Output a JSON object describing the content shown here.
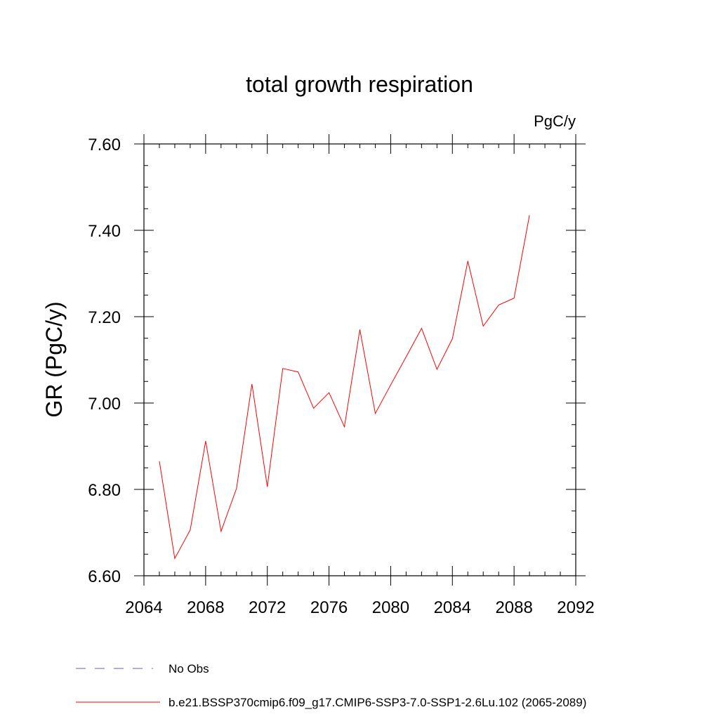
{
  "chart_data": {
    "type": "line",
    "title": "total growth respiration",
    "units": "PgC/y",
    "ylabel": "GR  (PgC/y)",
    "xlabel": "",
    "xlim": [
      2064,
      2092
    ],
    "ylim": [
      6.6,
      7.6
    ],
    "x_ticks": [
      2064,
      2068,
      2072,
      2076,
      2080,
      2084,
      2088,
      2092
    ],
    "x_tick_labels": [
      "2064",
      "2068",
      "2072",
      "2076",
      "2080",
      "2084",
      "2088",
      "2092"
    ],
    "x_minor_step": 1,
    "y_ticks": [
      6.6,
      6.8,
      7.0,
      7.2,
      7.4,
      7.6
    ],
    "y_tick_labels": [
      "6.60",
      "6.80",
      "7.00",
      "7.20",
      "7.40",
      "7.60"
    ],
    "y_minor_step": 0.05,
    "grid": false,
    "series": [
      {
        "name": "b.e21.BSSP370cmip6.f09_g17.CMIP6-SSP3-7.0-SSP1-2.6Lu.102 (2065-2089)",
        "color": "#ff0000",
        "x": [
          2065,
          2066,
          2067,
          2068,
          2069,
          2070,
          2071,
          2072,
          2073,
          2074,
          2075,
          2076,
          2077,
          2078,
          2079,
          2080,
          2081,
          2082,
          2083,
          2084,
          2085,
          2086,
          2087,
          2088,
          2089
        ],
        "y": [
          6.865,
          6.64,
          6.706,
          6.912,
          6.703,
          6.802,
          7.044,
          6.806,
          7.08,
          7.072,
          6.988,
          7.024,
          6.945,
          7.17,
          6.976,
          7.042,
          7.107,
          7.173,
          7.078,
          7.149,
          7.329,
          7.178,
          7.227,
          7.243,
          7.435
        ]
      }
    ],
    "legend": {
      "placement": "bottom",
      "entries": [
        {
          "label": "No Obs",
          "color": "#6a5acd",
          "style": "dashed"
        },
        {
          "label": "b.e21.BSSP370cmip6.f09_g17.CMIP6-SSP3-7.0-SSP1-2.6Lu.102 (2065-2089)",
          "color": "#ff0000",
          "style": "solid"
        }
      ]
    }
  }
}
